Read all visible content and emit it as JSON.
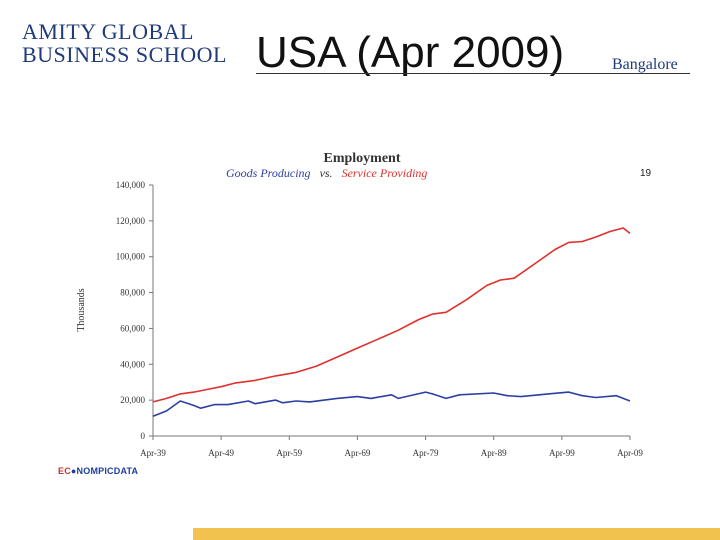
{
  "header": {
    "logo_line1": "AMITY GLOBAL",
    "logo_line2": "BUSINESS SCHOOL",
    "title": "USA (Apr 2009)",
    "campus": "Bangalore",
    "page_number": "19"
  },
  "footer": {
    "credit_prefix": "EC",
    "credit_rest": "NOMPICDATA"
  },
  "colors": {
    "goods": "#2b3fa3",
    "service": "#e0302d",
    "accent_bar": "#f2c24f"
  },
  "chart_data": {
    "type": "line",
    "title": "Employment",
    "subtitle_series_1": "Goods Producing",
    "subtitle_vs": "vs.",
    "subtitle_series_2": "Service Providing",
    "xlabel": "",
    "ylabel": "Thousands",
    "ylim": [
      0,
      140000
    ],
    "y_ticks": [
      "0",
      "20,000",
      "40,000",
      "60,000",
      "80,000",
      "100,000",
      "120,000",
      "140,000"
    ],
    "y_tick_values": [
      0,
      20000,
      40000,
      60000,
      80000,
      100000,
      120000,
      140000
    ],
    "x_ticks": [
      "Apr-39",
      "Apr-49",
      "Apr-59",
      "Apr-69",
      "Apr-79",
      "Apr-89",
      "Apr-99",
      "Apr-09"
    ],
    "x_tick_values": [
      1939,
      1949,
      1959,
      1969,
      1979,
      1989,
      1999,
      2009
    ],
    "xlim": [
      1939,
      2009
    ],
    "series": [
      {
        "name": "Goods Producing",
        "x": [
          1939,
          1941,
          1943,
          1945,
          1946,
          1948,
          1950,
          1953,
          1954,
          1957,
          1958,
          1960,
          1962,
          1966,
          1969,
          1971,
          1974,
          1975,
          1979,
          1980,
          1982,
          1984,
          1989,
          1991,
          1993,
          1997,
          2000,
          2002,
          2004,
          2007,
          2009
        ],
        "values": [
          11000,
          14000,
          19500,
          17000,
          15500,
          17500,
          17500,
          19500,
          18000,
          20000,
          18500,
          19500,
          19000,
          21000,
          22000,
          21000,
          23000,
          21000,
          24500,
          23500,
          21000,
          23000,
          24000,
          22500,
          22000,
          23500,
          24500,
          22500,
          21500,
          22500,
          19500
        ]
      },
      {
        "name": "Service Providing",
        "x": [
          1939,
          1941,
          1943,
          1945,
          1947,
          1949,
          1951,
          1954,
          1957,
          1960,
          1963,
          1966,
          1969,
          1972,
          1975,
          1978,
          1980,
          1982,
          1985,
          1988,
          1990,
          1992,
          1995,
          1998,
          2000,
          2002,
          2004,
          2006,
          2008,
          2009
        ],
        "values": [
          19000,
          21000,
          23500,
          24500,
          26000,
          27500,
          29500,
          31000,
          33500,
          35500,
          39000,
          44000,
          49000,
          54000,
          59000,
          65000,
          68000,
          69000,
          76000,
          84000,
          87000,
          88000,
          96000,
          104000,
          108000,
          108500,
          111000,
          114000,
          116000,
          113000
        ]
      }
    ]
  }
}
